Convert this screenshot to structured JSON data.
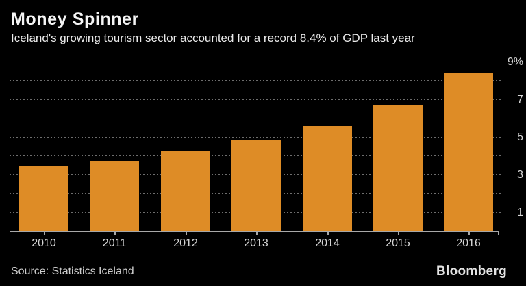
{
  "header": {
    "title": "Money Spinner",
    "subtitle": "Iceland's growing tourism sector accounted for a record 8.4% of GDP last year"
  },
  "chart_data": {
    "type": "bar",
    "title": "Money Spinner",
    "subtitle": "Iceland's growing tourism sector accounted for a record 8.4% of GDP last year",
    "categories": [
      "2010",
      "2011",
      "2012",
      "2013",
      "2014",
      "2015",
      "2016"
    ],
    "values": [
      3.5,
      3.7,
      4.3,
      4.9,
      5.6,
      6.7,
      8.4
    ],
    "unit": "% of GDP",
    "xlabel": "",
    "ylabel": "",
    "ylim": [
      0,
      9
    ],
    "y_axis": {
      "side": "right",
      "tick_values": [
        9,
        7,
        5,
        3,
        1
      ],
      "tick_labels": [
        "9%",
        "7",
        "5",
        "3",
        "1"
      ],
      "gridline_values": [
        1,
        2,
        3,
        4,
        5,
        6,
        7,
        8,
        9
      ],
      "grid_style": "dotted"
    },
    "legend": "none",
    "colors": {
      "background": "#000000",
      "bar": "#DE8C26",
      "grid": "#6E6E6E",
      "axis": "#A8A8A8",
      "text": "#D6D6D6"
    }
  },
  "footer": {
    "source": "Source: Statistics Iceland",
    "brand": "Bloomberg"
  }
}
